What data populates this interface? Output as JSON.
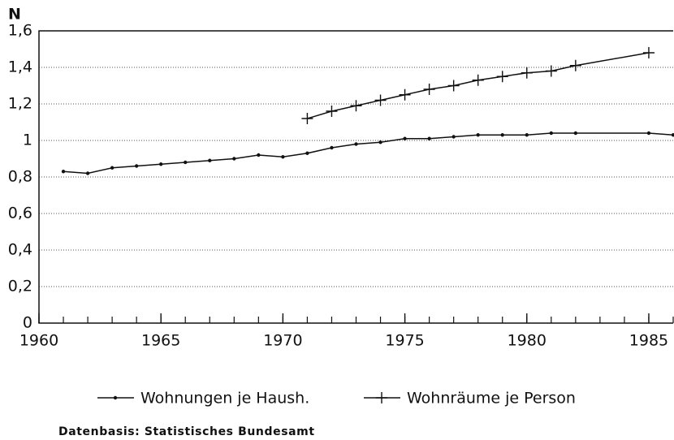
{
  "chart_data": {
    "type": "line",
    "y_label": "N",
    "x": [
      1961,
      1962,
      1963,
      1964,
      1965,
      1966,
      1967,
      1968,
      1969,
      1970,
      1971,
      1972,
      1973,
      1974,
      1975,
      1976,
      1977,
      1978,
      1979,
      1980,
      1981,
      1982,
      1985,
      1986
    ],
    "series": [
      {
        "name": "Wohnungen je Haush.",
        "color": "#111111",
        "marker": "dot",
        "values": [
          0.83,
          0.82,
          0.85,
          0.86,
          0.87,
          0.88,
          0.89,
          0.9,
          0.92,
          0.91,
          0.93,
          0.96,
          0.98,
          0.99,
          1.01,
          1.01,
          1.02,
          1.03,
          1.03,
          1.03,
          1.04,
          1.04,
          1.04,
          1.03
        ]
      },
      {
        "name": "Wohnräume je Person",
        "color": "#111111",
        "marker": "plus",
        "values": [
          null,
          null,
          null,
          null,
          null,
          null,
          null,
          null,
          null,
          null,
          1.12,
          1.16,
          1.19,
          1.22,
          1.25,
          1.28,
          1.3,
          1.33,
          1.35,
          1.37,
          1.38,
          1.41,
          1.48,
          null
        ]
      }
    ],
    "xlim": [
      1960,
      1986
    ],
    "xticks": [
      1960,
      1965,
      1970,
      1975,
      1980,
      1985
    ],
    "ylim": [
      0,
      1.6
    ],
    "yticks": [
      0,
      {
        "value": 0.2,
        "label": "0,2"
      },
      {
        "value": 0.4,
        "label": "0,4"
      },
      {
        "value": 0.6,
        "label": "0,6"
      },
      {
        "value": 0.8,
        "label": "0,8"
      },
      1,
      {
        "value": 1.2,
        "label": "1,2"
      },
      {
        "value": 1.4,
        "label": "1,4"
      },
      {
        "value": 1.6,
        "label": "1,6"
      }
    ],
    "grid": true,
    "source": "Datenbasis: Statistisches Bundesamt"
  }
}
